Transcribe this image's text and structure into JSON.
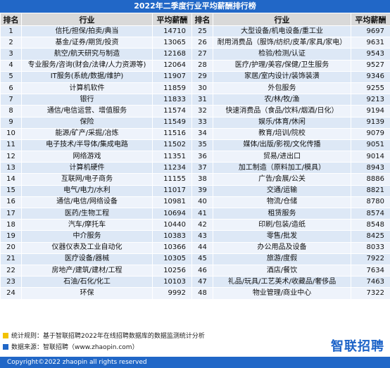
{
  "title": "2022年二季度行业平均薪酬排行榜",
  "colors": {
    "header_bar": "#2167c7",
    "header_cells": "#d9d9d9",
    "row_odd": "#dde8f6",
    "row_even": "#eef3fb",
    "note_mark_1": "#f2c200",
    "note_mark_2": "#2167c7",
    "brand": "#1c63c8"
  },
  "chart_data": {
    "type": "table",
    "columns": [
      "排名",
      "行业",
      "平均薪酬",
      "排名",
      "行业",
      "平均薪酬"
    ],
    "rows": [
      {
        "rank": "1",
        "industry": "信托/担保/拍卖/典当",
        "salary": "14710"
      },
      {
        "rank": "2",
        "industry": "基金/证券/期货/投资",
        "salary": "13065"
      },
      {
        "rank": "3",
        "industry": "航空/航天研究与制造",
        "salary": "12168"
      },
      {
        "rank": "4",
        "industry": "专业服务/咨询(财会/法律/人力资源等)",
        "salary": "12064"
      },
      {
        "rank": "5",
        "industry": "IT服务(系统/数据/维护)",
        "salary": "11907"
      },
      {
        "rank": "6",
        "industry": "计算机软件",
        "salary": "11859"
      },
      {
        "rank": "7",
        "industry": "银行",
        "salary": "11833"
      },
      {
        "rank": "8",
        "industry": "通信/电信运营、增值服务",
        "salary": "11574"
      },
      {
        "rank": "9",
        "industry": "保险",
        "salary": "11549"
      },
      {
        "rank": "10",
        "industry": "能源/矿产/采掘/冶炼",
        "salary": "11516"
      },
      {
        "rank": "11",
        "industry": "电子技术/半导体/集成电路",
        "salary": "11502"
      },
      {
        "rank": "12",
        "industry": "网络游戏",
        "salary": "11351"
      },
      {
        "rank": "13",
        "industry": "计算机硬件",
        "salary": "11234"
      },
      {
        "rank": "14",
        "industry": "互联网/电子商务",
        "salary": "11155"
      },
      {
        "rank": "15",
        "industry": "电气/电力/水利",
        "salary": "11017"
      },
      {
        "rank": "16",
        "industry": "通信/电信/网络设备",
        "salary": "10981"
      },
      {
        "rank": "17",
        "industry": "医药/生物工程",
        "salary": "10694"
      },
      {
        "rank": "18",
        "industry": "汽车/摩托车",
        "salary": "10440"
      },
      {
        "rank": "19",
        "industry": "中介服务",
        "salary": "10383"
      },
      {
        "rank": "20",
        "industry": "仪器仪表及工业自动化",
        "salary": "10366"
      },
      {
        "rank": "21",
        "industry": "医疗设备/器械",
        "salary": "10305"
      },
      {
        "rank": "22",
        "industry": "房地产/建筑/建材/工程",
        "salary": "10256"
      },
      {
        "rank": "23",
        "industry": "石油/石化/化工",
        "salary": "10103"
      },
      {
        "rank": "24",
        "industry": "环保",
        "salary": "9992"
      },
      {
        "rank": "25",
        "industry": "大型设备/机电设备/重工业",
        "salary": "9697"
      },
      {
        "rank": "26",
        "industry": "耐用消费品（服饰/纺织/皮革/家具/家电）",
        "salary": "9631"
      },
      {
        "rank": "27",
        "industry": "检验/检测/认证",
        "salary": "9543"
      },
      {
        "rank": "28",
        "industry": "医疗/护理/美容/保健/卫生服务",
        "salary": "9527"
      },
      {
        "rank": "29",
        "industry": "家居/室内设计/装饰装潢",
        "salary": "9346"
      },
      {
        "rank": "30",
        "industry": "外包服务",
        "salary": "9255"
      },
      {
        "rank": "31",
        "industry": "农/林/牧/渔",
        "salary": "9213"
      },
      {
        "rank": "32",
        "industry": "快速消费品（食品/饮料/烟酒/日化）",
        "salary": "9194"
      },
      {
        "rank": "33",
        "industry": "娱乐/体育/休闲",
        "salary": "9139"
      },
      {
        "rank": "34",
        "industry": "教育/培训/院校",
        "salary": "9079"
      },
      {
        "rank": "35",
        "industry": "媒体/出版/影视/文化传播",
        "salary": "9051"
      },
      {
        "rank": "36",
        "industry": "贸易/进出口",
        "salary": "9014"
      },
      {
        "rank": "37",
        "industry": "加工制造（原料加工/模具）",
        "salary": "8943"
      },
      {
        "rank": "38",
        "industry": "广告/会展/公关",
        "salary": "8886"
      },
      {
        "rank": "39",
        "industry": "交通/运输",
        "salary": "8821"
      },
      {
        "rank": "40",
        "industry": "物流/仓储",
        "salary": "8780"
      },
      {
        "rank": "41",
        "industry": "租赁服务",
        "salary": "8574"
      },
      {
        "rank": "42",
        "industry": "印刷/包装/造纸",
        "salary": "8548"
      },
      {
        "rank": "43",
        "industry": "零售/批发",
        "salary": "8425"
      },
      {
        "rank": "44",
        "industry": "办公用品及设备",
        "salary": "8033"
      },
      {
        "rank": "45",
        "industry": "旅游/度假",
        "salary": "7922"
      },
      {
        "rank": "46",
        "industry": "酒店/餐饮",
        "salary": "7634"
      },
      {
        "rank": "47",
        "industry": "礼品/玩具/工艺美术/收藏品/奢侈品",
        "salary": "7463"
      },
      {
        "rank": "48",
        "industry": "物业管理/商业中心",
        "salary": "7322"
      }
    ]
  },
  "notes": {
    "line1": "统计规则：基于智联招聘2022年在线招聘数据库的数据监测统计分析",
    "line2": "数据来源：智联招聘（www.zhaopin.com）"
  },
  "brand": "智联招聘",
  "footer": "Copyright©2022 zhaopin all rights reserved"
}
